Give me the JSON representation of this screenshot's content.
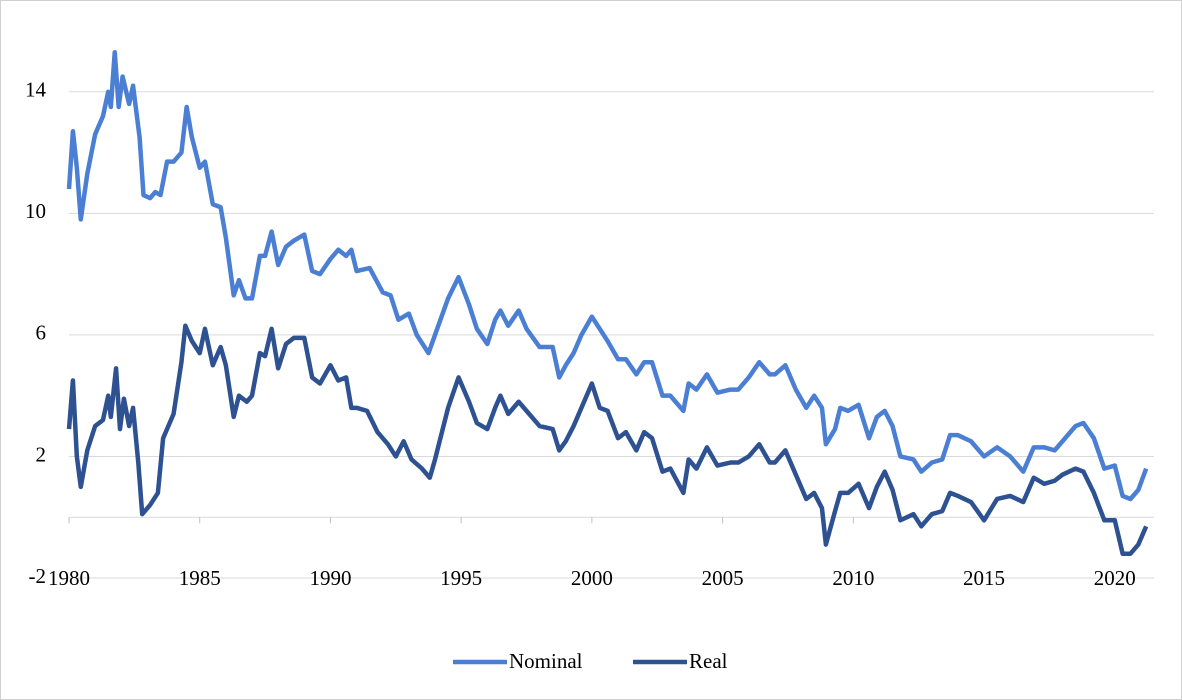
{
  "chart_data": {
    "type": "line",
    "series": [
      {
        "name": "Nominal",
        "color": "#4a7fd4",
        "x": [
          1980.0,
          1980.15,
          1980.3,
          1980.45,
          1980.7,
          1981.0,
          1981.3,
          1981.5,
          1981.6,
          1981.75,
          1981.9,
          1982.05,
          1982.3,
          1982.45,
          1982.7,
          1982.85,
          1983.1,
          1983.3,
          1983.5,
          1983.75,
          1984.0,
          1984.3,
          1984.5,
          1984.7,
          1985.0,
          1985.2,
          1985.5,
          1985.8,
          1986.0,
          1986.3,
          1986.5,
          1986.75,
          1987.0,
          1987.3,
          1987.5,
          1987.75,
          1988.0,
          1988.3,
          1988.6,
          1989.0,
          1989.3,
          1989.6,
          1990.0,
          1990.3,
          1990.6,
          1990.8,
          1991.0,
          1991.5,
          1992.0,
          1992.3,
          1992.6,
          1993.0,
          1993.3,
          1993.75,
          1994.0,
          1994.5,
          1994.9,
          1995.3,
          1995.6,
          1996.0,
          1996.3,
          1996.5,
          1996.8,
          1997.2,
          1997.5,
          1998.0,
          1998.5,
          1998.75,
          1999.0,
          1999.3,
          1999.6,
          2000.0,
          2000.3,
          2000.6,
          2001.0,
          2001.3,
          2001.7,
          2002.0,
          2002.3,
          2002.7,
          2003.0,
          2003.5,
          2003.7,
          2004.0,
          2004.4,
          2004.8,
          2005.3,
          2005.6,
          2006.0,
          2006.4,
          2006.8,
          2007.0,
          2007.4,
          2007.8,
          2008.2,
          2008.5,
          2008.8,
          2008.95,
          2009.3,
          2009.5,
          2009.8,
          2010.2,
          2010.6,
          2010.9,
          2011.2,
          2011.5,
          2011.8,
          2012.3,
          2012.6,
          2013.0,
          2013.4,
          2013.7,
          2014.0,
          2014.5,
          2015.0,
          2015.5,
          2016.0,
          2016.5,
          2016.9,
          2017.3,
          2017.7,
          2018.0,
          2018.5,
          2018.8,
          2019.2,
          2019.6,
          2020.0,
          2020.3,
          2020.6,
          2020.9,
          2021.2
        ],
        "values": [
          10.8,
          12.7,
          11.5,
          9.8,
          11.3,
          12.6,
          13.2,
          14.0,
          13.5,
          15.3,
          13.5,
          14.5,
          13.6,
          14.2,
          12.5,
          10.6,
          10.5,
          10.7,
          10.6,
          11.7,
          11.7,
          12.0,
          13.5,
          12.5,
          11.5,
          11.7,
          10.3,
          10.2,
          9.2,
          7.3,
          7.8,
          7.2,
          7.2,
          8.6,
          8.6,
          9.4,
          8.3,
          8.9,
          9.1,
          9.3,
          8.1,
          8.0,
          8.5,
          8.8,
          8.6,
          8.8,
          8.1,
          8.2,
          7.4,
          7.3,
          6.5,
          6.7,
          6.0,
          5.4,
          6.0,
          7.2,
          7.9,
          7.0,
          6.2,
          5.7,
          6.5,
          6.8,
          6.3,
          6.8,
          6.2,
          5.6,
          5.6,
          4.6,
          5.0,
          5.4,
          6.0,
          6.6,
          6.2,
          5.8,
          5.2,
          5.2,
          4.7,
          5.1,
          5.1,
          4.0,
          4.0,
          3.5,
          4.4,
          4.2,
          4.7,
          4.1,
          4.2,
          4.2,
          4.6,
          5.1,
          4.7,
          4.7,
          5.0,
          4.2,
          3.6,
          4.0,
          3.6,
          2.4,
          2.9,
          3.6,
          3.5,
          3.7,
          2.6,
          3.3,
          3.5,
          3.0,
          2.0,
          1.9,
          1.5,
          1.8,
          1.9,
          2.7,
          2.7,
          2.5,
          2.0,
          2.3,
          2.0,
          1.5,
          2.3,
          2.3,
          2.2,
          2.5,
          3.0,
          3.1,
          2.6,
          1.6,
          1.7,
          0.7,
          0.6,
          0.9,
          1.6
        ]
      },
      {
        "name": "Real",
        "color": "#2e5291",
        "x": [
          1980.0,
          1980.15,
          1980.3,
          1980.45,
          1980.7,
          1981.0,
          1981.3,
          1981.5,
          1981.6,
          1981.8,
          1981.95,
          1982.1,
          1982.3,
          1982.45,
          1982.65,
          1982.8,
          1983.1,
          1983.4,
          1983.6,
          1984.0,
          1984.3,
          1984.45,
          1984.7,
          1985.0,
          1985.2,
          1985.5,
          1985.8,
          1986.0,
          1986.3,
          1986.5,
          1986.8,
          1987.0,
          1987.3,
          1987.5,
          1987.75,
          1988.0,
          1988.3,
          1988.6,
          1989.0,
          1989.3,
          1989.6,
          1990.0,
          1990.3,
          1990.6,
          1990.8,
          1991.0,
          1991.4,
          1991.8,
          1992.2,
          1992.5,
          1992.8,
          1993.1,
          1993.5,
          1993.8,
          1994.0,
          1994.5,
          1994.9,
          1995.3,
          1995.6,
          1996.0,
          1996.3,
          1996.5,
          1996.8,
          1997.2,
          1997.5,
          1998.0,
          1998.5,
          1998.75,
          1999.0,
          1999.3,
          1999.6,
          2000.0,
          2000.3,
          2000.6,
          2001.0,
          2001.3,
          2001.7,
          2002.0,
          2002.3,
          2002.7,
          2003.0,
          2003.5,
          2003.7,
          2004.0,
          2004.4,
          2004.8,
          2005.3,
          2005.6,
          2006.0,
          2006.4,
          2006.8,
          2007.0,
          2007.4,
          2007.8,
          2008.2,
          2008.5,
          2008.8,
          2008.95,
          2009.3,
          2009.5,
          2009.8,
          2010.2,
          2010.6,
          2010.9,
          2011.2,
          2011.5,
          2011.8,
          2012.3,
          2012.6,
          2013.0,
          2013.4,
          2013.7,
          2014.0,
          2014.5,
          2015.0,
          2015.5,
          2016.0,
          2016.5,
          2016.9,
          2017.3,
          2017.7,
          2018.0,
          2018.5,
          2018.8,
          2019.2,
          2019.6,
          2020.0,
          2020.3,
          2020.6,
          2020.9,
          2021.2
        ],
        "values": [
          2.9,
          4.5,
          2.0,
          1.0,
          2.2,
          3.0,
          3.2,
          4.0,
          3.3,
          4.9,
          2.9,
          3.9,
          3.0,
          3.6,
          1.8,
          0.1,
          0.4,
          0.8,
          2.6,
          3.4,
          5.1,
          6.3,
          5.8,
          5.4,
          6.2,
          5.0,
          5.6,
          5.0,
          3.3,
          4.0,
          3.8,
          4.0,
          5.4,
          5.3,
          6.2,
          4.9,
          5.7,
          5.9,
          5.9,
          4.6,
          4.4,
          5.0,
          4.5,
          4.6,
          3.6,
          3.6,
          3.5,
          2.8,
          2.4,
          2.0,
          2.5,
          1.9,
          1.6,
          1.3,
          1.9,
          3.6,
          4.6,
          3.8,
          3.1,
          2.9,
          3.6,
          4.0,
          3.4,
          3.8,
          3.5,
          3.0,
          2.9,
          2.2,
          2.5,
          3.0,
          3.6,
          4.4,
          3.6,
          3.5,
          2.6,
          2.8,
          2.2,
          2.8,
          2.6,
          1.5,
          1.6,
          0.8,
          1.9,
          1.6,
          2.3,
          1.7,
          1.8,
          1.8,
          2.0,
          2.4,
          1.8,
          1.8,
          2.2,
          1.4,
          0.6,
          0.8,
          0.3,
          -0.9,
          0.2,
          0.8,
          0.8,
          1.1,
          0.3,
          1.0,
          1.5,
          0.9,
          -0.1,
          0.1,
          -0.3,
          0.1,
          0.2,
          0.8,
          0.7,
          0.5,
          -0.1,
          0.6,
          0.7,
          0.5,
          1.3,
          1.1,
          1.2,
          1.4,
          1.6,
          1.5,
          0.8,
          -0.1,
          -0.1,
          -1.2,
          -1.2,
          -0.9,
          -0.3
        ]
      }
    ],
    "xlim": [
      1980,
      2021.5
    ],
    "xticks": [
      1980,
      1985,
      1990,
      1995,
      2000,
      2005,
      2010,
      2015,
      2020
    ],
    "ylim": [
      -2,
      16
    ],
    "yticks": [
      -2,
      2,
      6,
      10,
      14
    ],
    "grid": true,
    "legend": "bottom"
  }
}
